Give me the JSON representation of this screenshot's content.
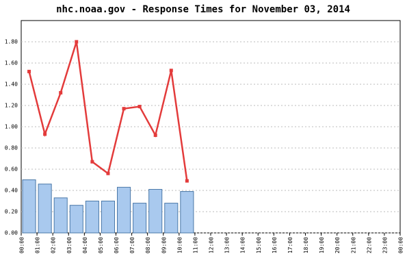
{
  "chart_data": {
    "type": "bar-line",
    "title": "nhc.noaa.gov - Response Times for November 03, 2014",
    "categories": [
      "00:00",
      "01:00",
      "02:00",
      "03:00",
      "04:00",
      "05:00",
      "06:00",
      "07:00",
      "08:00",
      "09:00",
      "10:00",
      "11:00",
      "12:00",
      "13:00",
      "14:00",
      "15:00",
      "16:00",
      "17:00",
      "18:00",
      "19:00",
      "20:00",
      "21:00",
      "22:00",
      "23:00",
      "00:00"
    ],
    "series": [
      {
        "type": "bar",
        "color": "#a9c9ee",
        "values": [
          0.5,
          0.46,
          0.33,
          0.26,
          0.3,
          0.3,
          0.43,
          0.28,
          0.41,
          0.28,
          0.39,
          null,
          null,
          null,
          null,
          null,
          null,
          null,
          null,
          null,
          null,
          null,
          null,
          null,
          null
        ]
      },
      {
        "type": "line",
        "color": "#e33b3b",
        "values": [
          1.52,
          0.93,
          1.32,
          1.8,
          0.67,
          0.56,
          1.17,
          1.19,
          0.92,
          1.53,
          0.49,
          null,
          null,
          null,
          null,
          null,
          null,
          null,
          null,
          null,
          null,
          null,
          null,
          null,
          null
        ]
      }
    ],
    "ylim": [
      0,
      2.0
    ],
    "yticks": [
      {
        "value": 0,
        "label": "0.00"
      },
      {
        "value": 0.2,
        "label": "0.20"
      },
      {
        "value": 0.4,
        "label": "0.40"
      },
      {
        "value": 0.6,
        "label": "0.60"
      },
      {
        "value": 0.8,
        "label": "0.80"
      },
      {
        "value": 1.0,
        "label": "1.00"
      },
      {
        "value": 1.2,
        "label": "1.20"
      },
      {
        "value": 1.4,
        "label": "1.40"
      },
      {
        "value": 1.6,
        "label": "1.60"
      },
      {
        "value": 1.8,
        "label": "1.80"
      }
    ],
    "grid": true
  }
}
